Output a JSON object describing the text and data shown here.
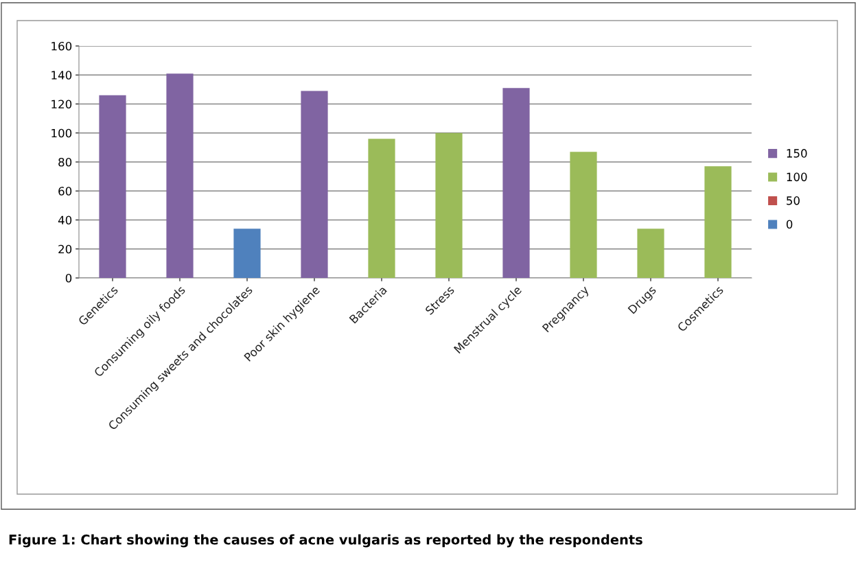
{
  "chart_data": {
    "type": "bar",
    "stacked": true,
    "categories": [
      "Genetics",
      "Consuming oily foods",
      "Consuming sweets and chocolates",
      "Poor skin hygiene",
      "Bacteria",
      "Stress",
      "Menstrual cycle",
      "Pregnancy",
      "Drugs",
      "Cosmetics"
    ],
    "series": [
      {
        "name": "150",
        "color": "#8064a2",
        "values": [
          126,
          141,
          null,
          129,
          null,
          null,
          131,
          null,
          null,
          null
        ]
      },
      {
        "name": "100",
        "color": "#9bbb59",
        "values": [
          null,
          null,
          null,
          null,
          96,
          100,
          null,
          87,
          34,
          77
        ]
      },
      {
        "name": "50",
        "color": "#c0504d",
        "values": [
          null,
          null,
          null,
          null,
          null,
          null,
          null,
          null,
          null,
          null
        ]
      },
      {
        "name": "0",
        "color": "#4f81bd",
        "values": [
          null,
          null,
          34,
          null,
          null,
          null,
          null,
          null,
          null,
          null
        ]
      }
    ],
    "ylim": [
      0,
      160
    ],
    "yticks": [
      0,
      20,
      40,
      60,
      80,
      100,
      120,
      140,
      160
    ],
    "grid": "y",
    "legend": "right",
    "annotations": [
      "Figure 1: Chart showing the causes of acne vulgaris as reported by the respondents"
    ]
  }
}
